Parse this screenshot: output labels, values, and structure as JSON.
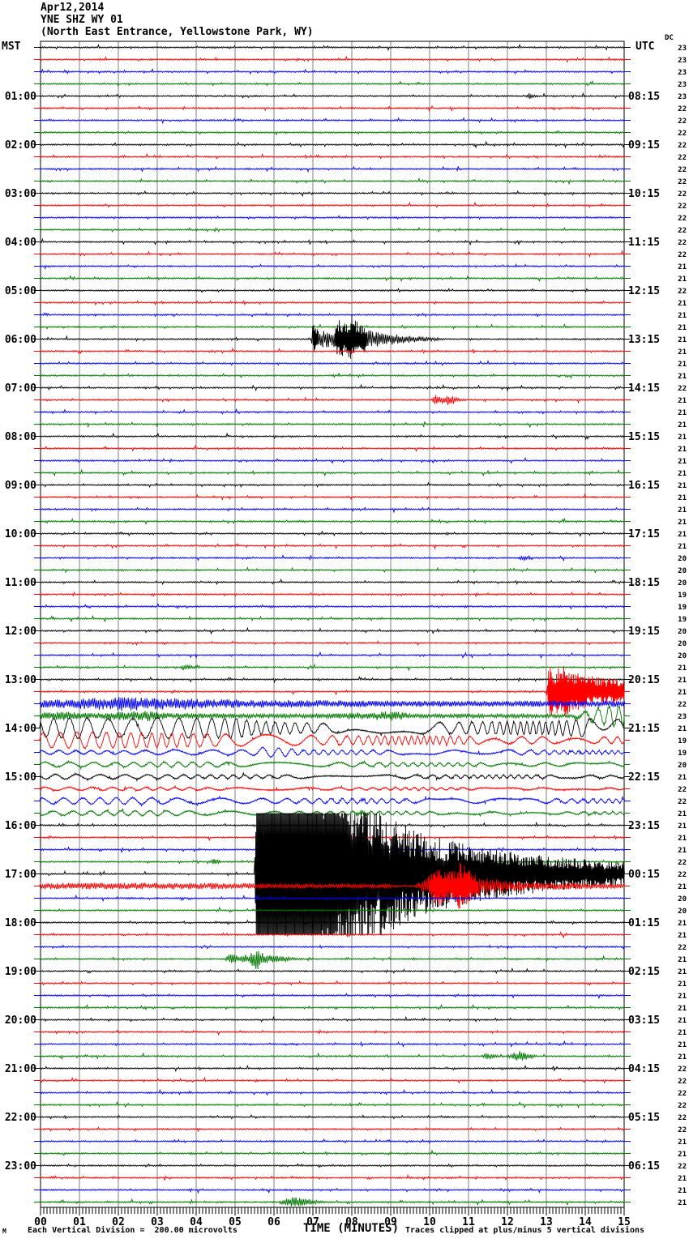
{
  "header": {
    "date": "Apr12,2014",
    "station": "YNE SHZ WY 01",
    "location": "(North East Entrance, Yellowstone Park, WY)",
    "left_axis": "MST",
    "right_axis": "UTC",
    "dc_label": "DC"
  },
  "footer": {
    "scale_note": "Each Vertical Division =  200.00 microvolts",
    "axis_label": "TIME (MINUTES)",
    "clip_note": "Traces clipped at plus/minus 5 vertical divisions",
    "corner_mark": "M"
  },
  "left_time_labels": [
    "01:00",
    "02:00",
    "03:00",
    "04:00",
    "05:00",
    "06:00",
    "07:00",
    "08:00",
    "09:00",
    "10:00",
    "11:00",
    "12:00",
    "13:00",
    "14:00",
    "15:00",
    "16:00",
    "17:00",
    "18:00",
    "19:00",
    "20:00",
    "21:00",
    "22:00",
    "23:00"
  ],
  "right_time_labels": [
    "08:15",
    "09:15",
    "10:15",
    "11:15",
    "12:15",
    "13:15",
    "14:15",
    "15:15",
    "16:15",
    "17:15",
    "18:15",
    "19:15",
    "20:15",
    "21:15",
    "22:15",
    "23:15",
    "00:15",
    "01:15",
    "02:15",
    "03:15",
    "04:15",
    "05:15",
    "06:15"
  ],
  "x_tick_labels": [
    "00",
    "01",
    "02",
    "03",
    "04",
    "05",
    "06",
    "07",
    "08",
    "09",
    "10",
    "11",
    "12",
    "13",
    "14",
    "15"
  ],
  "dc_values": [
    23,
    23,
    23,
    23,
    23,
    22,
    22,
    22,
    22,
    22,
    22,
    22,
    22,
    22,
    22,
    22,
    22,
    22,
    21,
    21,
    22,
    21,
    21,
    21,
    21,
    21,
    21,
    21,
    22,
    21,
    21,
    21,
    21,
    21,
    21,
    21,
    21,
    21,
    21,
    21,
    21,
    21,
    20,
    20,
    20,
    19,
    19,
    19,
    20,
    20,
    20,
    21,
    21,
    21,
    22,
    23,
    21,
    19,
    19,
    20,
    21,
    22,
    22,
    21,
    21,
    21,
    21,
    22,
    22,
    21,
    20,
    20,
    21,
    21,
    22,
    21,
    21,
    21,
    21,
    21,
    21,
    21,
    21,
    21,
    22,
    22,
    22,
    22,
    22,
    22,
    21,
    21,
    22,
    21,
    21,
    21
  ],
  "chart_data": {
    "type": "line",
    "subtype": "helicorder-seismogram",
    "title": "YNE SHZ WY 01 (North East Entrance, Yellowstone Park, WY) Apr12,2014",
    "xlabel": "TIME (MINUTES)",
    "x_range_minutes": [
      0,
      15
    ],
    "rows": 96,
    "minutes_per_row": 15,
    "vertical_division_microvolts": 200.0,
    "clip_divisions": 5,
    "trace_colors": [
      "#000000",
      "#ff0000",
      "#0000ff",
      "#007700"
    ],
    "grid_color": "#808080",
    "noise": {
      "base": 0.9,
      "dash_amp": 2.2,
      "dash_prob": 0.05,
      "blip_amp": 3.5,
      "blip_prob": 0.01
    },
    "events": [
      {
        "row": 1,
        "type": "burst",
        "env": [
          [
            6.55,
            0
          ],
          [
            6.6,
            3
          ],
          [
            6.75,
            0
          ]
        ]
      },
      {
        "row": 4,
        "type": "burst",
        "env": [
          [
            12.45,
            0
          ],
          [
            12.55,
            4
          ],
          [
            12.7,
            2
          ],
          [
            12.95,
            0
          ]
        ]
      },
      {
        "row": 24,
        "type": "burst",
        "env": [
          [
            6.95,
            0
          ],
          [
            7.0,
            18
          ],
          [
            7.2,
            12
          ],
          [
            7.5,
            9
          ],
          [
            7.65,
            25
          ],
          [
            7.85,
            18
          ],
          [
            8.0,
            30
          ],
          [
            8.2,
            20
          ],
          [
            8.45,
            12
          ],
          [
            8.8,
            8
          ],
          [
            9.4,
            5
          ],
          [
            10.2,
            2
          ],
          [
            10.8,
            0
          ]
        ]
      },
      {
        "row": 29,
        "type": "burst",
        "env": [
          [
            10.05,
            0
          ],
          [
            10.1,
            7
          ],
          [
            10.35,
            5
          ],
          [
            10.5,
            8
          ],
          [
            10.7,
            3
          ],
          [
            11.05,
            0
          ]
        ]
      },
      {
        "row": 42,
        "type": "burst",
        "env": [
          [
            12.25,
            0
          ],
          [
            12.3,
            3
          ],
          [
            12.55,
            3
          ],
          [
            12.65,
            0
          ]
        ]
      },
      {
        "row": 51,
        "type": "burst",
        "env": [
          [
            3.55,
            0
          ],
          [
            3.65,
            4
          ],
          [
            3.9,
            2
          ],
          [
            4.15,
            0
          ]
        ]
      },
      {
        "row": 53,
        "type": "burst",
        "env": [
          [
            13.0,
            0
          ],
          [
            13.08,
            38
          ],
          [
            13.25,
            28
          ],
          [
            13.45,
            32
          ],
          [
            13.7,
            24
          ],
          [
            14.1,
            20
          ],
          [
            14.5,
            17
          ],
          [
            15,
            15
          ]
        ]
      },
      {
        "row": 54,
        "type": "noise",
        "env": [
          [
            0,
            5
          ],
          [
            0.8,
            6
          ],
          [
            1.6,
            8
          ],
          [
            2.2,
            9
          ],
          [
            2.8,
            7
          ],
          [
            3.6,
            8
          ],
          [
            4.4,
            6
          ],
          [
            5.5,
            5
          ],
          [
            7,
            4.5
          ],
          [
            9,
            4
          ],
          [
            11,
            3.5
          ],
          [
            13,
            4
          ],
          [
            15,
            4
          ]
        ]
      },
      {
        "row": 55,
        "type": "noise",
        "env": [
          [
            0,
            4
          ],
          [
            0.7,
            6
          ],
          [
            1.3,
            3.5
          ],
          [
            2.7,
            7
          ],
          [
            3.3,
            3.5
          ],
          [
            5,
            3
          ],
          [
            7,
            2.5
          ],
          [
            9.1,
            6
          ],
          [
            9.6,
            2.5
          ],
          [
            11,
            2.5
          ],
          [
            13,
            2.5
          ],
          [
            15,
            2
          ]
        ]
      },
      {
        "row": 55,
        "type": "sine",
        "period": 0.65,
        "env": [
          [
            13.6,
            0
          ],
          [
            14.2,
            8
          ],
          [
            14.7,
            13
          ],
          [
            15,
            11
          ]
        ]
      },
      {
        "row": 56,
        "type": "sine",
        "period": 0.45,
        "env": [
          [
            0,
            11
          ],
          [
            1,
            13
          ],
          [
            2,
            11
          ],
          [
            3,
            13
          ],
          [
            4,
            12
          ],
          [
            5,
            12
          ],
          [
            5.6,
            8
          ],
          [
            7,
            6
          ],
          [
            8.5,
            6
          ],
          [
            10,
            7
          ],
          [
            11,
            7
          ],
          [
            12,
            8
          ],
          [
            13,
            8
          ],
          [
            14,
            11
          ],
          [
            14.6,
            12
          ],
          [
            15,
            10
          ]
        ]
      },
      {
        "row": 57,
        "type": "sine",
        "period": 0.38,
        "env": [
          [
            0,
            9
          ],
          [
            1,
            10
          ],
          [
            2.5,
            9
          ],
          [
            4,
            8
          ],
          [
            5.5,
            7
          ],
          [
            7,
            6
          ],
          [
            8.5,
            5
          ],
          [
            10,
            5
          ],
          [
            12,
            4.5
          ],
          [
            14,
            4
          ],
          [
            15,
            4
          ]
        ]
      },
      {
        "row": 58,
        "type": "sine",
        "period": 0.5,
        "env": [
          [
            0,
            2.5
          ],
          [
            2,
            2
          ],
          [
            3.5,
            3
          ],
          [
            5.4,
            3
          ],
          [
            5.7,
            6
          ],
          [
            6.3,
            5
          ],
          [
            6.7,
            3
          ],
          [
            8,
            2.5
          ],
          [
            10,
            2.5
          ],
          [
            12,
            3
          ],
          [
            14,
            2
          ],
          [
            15,
            2
          ]
        ]
      },
      {
        "row": 59,
        "type": "sine",
        "period": 0.55,
        "env": [
          [
            0,
            3
          ],
          [
            2,
            2.5
          ],
          [
            4,
            3
          ],
          [
            6,
            2.5
          ],
          [
            8,
            2.5
          ],
          [
            10,
            2
          ],
          [
            12,
            2
          ],
          [
            15,
            2
          ]
        ]
      },
      {
        "row": 60,
        "type": "sine",
        "period": 0.5,
        "env": [
          [
            0,
            3
          ],
          [
            3,
            2.5
          ],
          [
            6,
            2
          ],
          [
            9,
            2
          ],
          [
            12,
            2
          ],
          [
            15,
            1.5
          ]
        ]
      },
      {
        "row": 61,
        "type": "sine",
        "period": 0.55,
        "env": [
          [
            0,
            2
          ],
          [
            5,
            1.5
          ],
          [
            10,
            1.5
          ],
          [
            15,
            1
          ]
        ]
      },
      {
        "row": 62,
        "type": "sine",
        "period": 0.55,
        "env": [
          [
            0,
            3.5
          ],
          [
            2,
            4
          ],
          [
            4,
            3.5
          ],
          [
            6,
            3
          ],
          [
            8,
            3
          ],
          [
            10,
            2.5
          ],
          [
            12,
            3
          ],
          [
            14,
            2.5
          ],
          [
            15,
            2.5
          ]
        ]
      },
      {
        "row": 63,
        "type": "sine",
        "period": 0.5,
        "env": [
          [
            0,
            2.5
          ],
          [
            3,
            3
          ],
          [
            6,
            2
          ],
          [
            9,
            2
          ],
          [
            12,
            1.5
          ],
          [
            15,
            1.5
          ]
        ]
      },
      {
        "row": 63,
        "type": "burst",
        "env": [
          [
            8.0,
            0
          ],
          [
            8.2,
            4
          ],
          [
            8.6,
            0
          ]
        ]
      },
      {
        "row": 67,
        "type": "burst",
        "env": [
          [
            4.3,
            0
          ],
          [
            4.45,
            4
          ],
          [
            4.75,
            0
          ]
        ]
      },
      {
        "row": 68,
        "type": "burst",
        "env": [
          [
            5.5,
            0
          ],
          [
            5.58,
            220
          ],
          [
            7.0,
            220
          ],
          [
            7.5,
            150
          ],
          [
            8.0,
            110
          ],
          [
            8.6,
            85
          ],
          [
            9.3,
            62
          ],
          [
            10.2,
            46
          ],
          [
            11,
            36
          ],
          [
            12,
            28
          ],
          [
            13,
            22
          ],
          [
            14,
            18
          ],
          [
            15,
            15
          ]
        ]
      },
      {
        "row": 69,
        "type": "noise",
        "env": [
          [
            0,
            4
          ],
          [
            3,
            4
          ],
          [
            5.5,
            3.5
          ],
          [
            7,
            2.5
          ],
          [
            9,
            2.5
          ]
        ]
      },
      {
        "row": 69,
        "type": "burst",
        "env": [
          [
            9.6,
            0
          ],
          [
            9.9,
            10
          ],
          [
            10.2,
            26
          ],
          [
            10.5,
            18
          ],
          [
            10.8,
            30
          ],
          [
            11.1,
            16
          ],
          [
            11.5,
            10
          ],
          [
            12.2,
            7
          ],
          [
            13,
            5
          ],
          [
            14,
            4
          ],
          [
            15,
            3
          ]
        ]
      },
      {
        "row": 75,
        "type": "burst",
        "env": [
          [
            4.7,
            0
          ],
          [
            4.85,
            6
          ],
          [
            5.15,
            4
          ],
          [
            5.4,
            7
          ],
          [
            5.55,
            14
          ],
          [
            5.8,
            7
          ],
          [
            6.1,
            4
          ],
          [
            6.5,
            2
          ],
          [
            7.0,
            0
          ]
        ]
      },
      {
        "row": 83,
        "type": "burst",
        "env": [
          [
            11.3,
            0
          ],
          [
            11.45,
            4
          ],
          [
            11.65,
            2
          ],
          [
            11.95,
            1
          ],
          [
            12.1,
            3
          ],
          [
            12.3,
            7
          ],
          [
            12.55,
            4
          ],
          [
            12.85,
            0
          ]
        ]
      },
      {
        "row": 95,
        "type": "burst",
        "env": [
          [
            6.1,
            0
          ],
          [
            6.3,
            5
          ],
          [
            6.55,
            7
          ],
          [
            6.8,
            4
          ],
          [
            7.15,
            2
          ],
          [
            7.45,
            0
          ]
        ]
      }
    ]
  }
}
